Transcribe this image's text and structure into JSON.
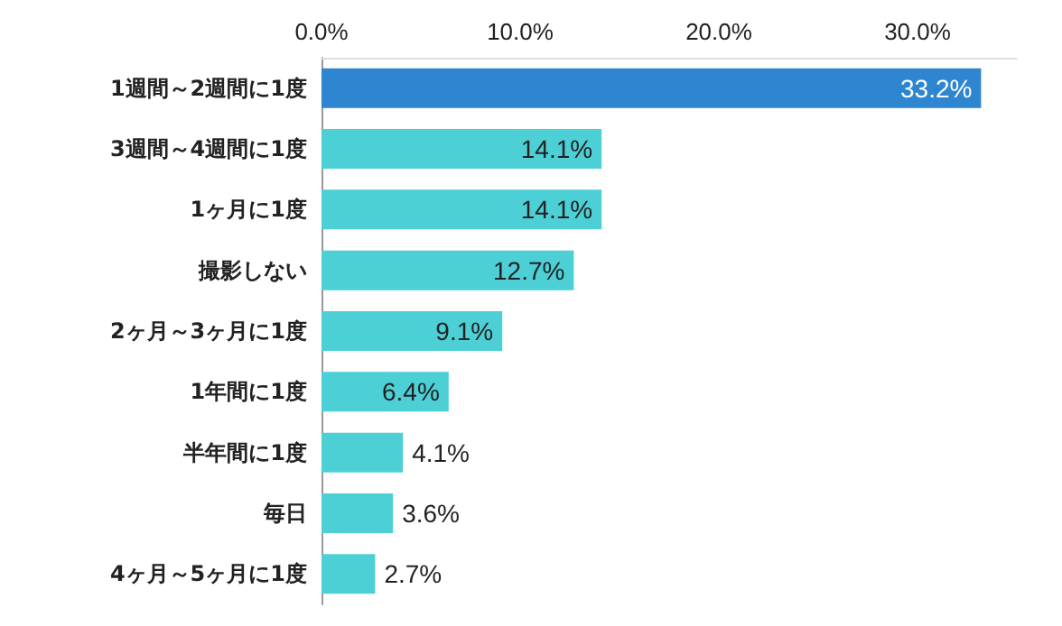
{
  "chart_data": {
    "type": "bar",
    "orientation": "horizontal",
    "categories": [
      "1週間～2週間に1度",
      "3週間～4週間に1度",
      "1ヶ月に1度",
      "撮影しない",
      "2ヶ月～3ヶ月に1度",
      "1年間に1度",
      "半年間に1度",
      "毎日",
      "4ヶ月～5ヶ月に1度"
    ],
    "values": [
      33.2,
      14.1,
      14.1,
      12.7,
      9.1,
      6.4,
      4.1,
      3.6,
      2.7
    ],
    "colors": [
      "#2e86d0",
      "#4dcfd6",
      "#4dcfd6",
      "#4dcfd6",
      "#4dcfd6",
      "#4dcfd6",
      "#4dcfd6",
      "#4dcfd6",
      "#4dcfd6"
    ],
    "value_labels": [
      "33.2%",
      "14.1%",
      "14.1%",
      "12.7%",
      "9.1%",
      "6.4%",
      "4.1%",
      "3.6%",
      "2.7%"
    ],
    "xlim": [
      0,
      35
    ],
    "xticks": [
      {
        "value": 0,
        "label": "0.0%"
      },
      {
        "value": 10,
        "label": "10.0%"
      },
      {
        "value": 20,
        "label": "20.0%"
      },
      {
        "value": 30,
        "label": "30.0%"
      }
    ],
    "grid": false
  }
}
